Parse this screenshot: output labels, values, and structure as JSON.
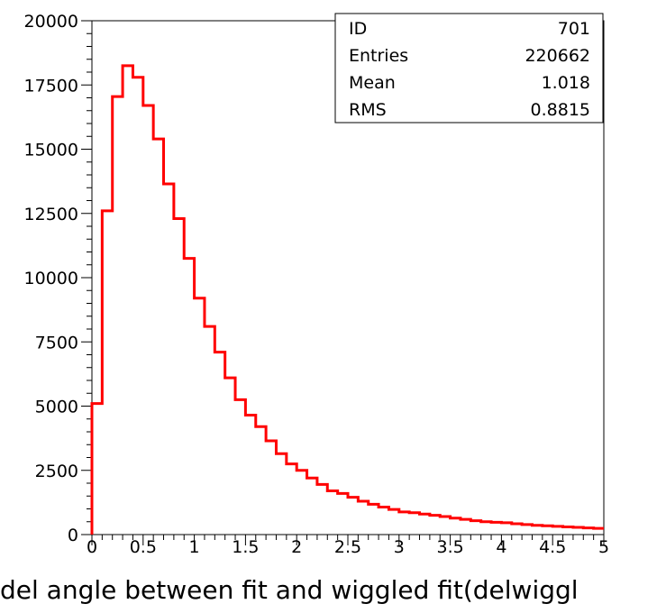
{
  "chart_data": {
    "type": "bar",
    "title": "",
    "xlabel": "del angle between fit and  wiggled fit(delwiggl",
    "ylabel": "",
    "xlim": [
      0,
      5
    ],
    "ylim": [
      0,
      20000
    ],
    "grid": false,
    "x_ticks": [
      "0",
      "0.5",
      "1",
      "1.5",
      "2",
      "2.5",
      "3",
      "3.5",
      "4",
      "4.5",
      "5"
    ],
    "y_ticks": [
      "0",
      "2500",
      "5000",
      "7500",
      "10000",
      "12500",
      "15000",
      "17500",
      "20000"
    ],
    "bin_width": 0.1,
    "bins_start": 0,
    "values": [
      5100,
      12600,
      17050,
      18250,
      17800,
      16700,
      15400,
      13650,
      12300,
      10750,
      9200,
      8100,
      7100,
      6100,
      5250,
      4650,
      4200,
      3650,
      3150,
      2750,
      2500,
      2200,
      1950,
      1700,
      1600,
      1450,
      1300,
      1180,
      1070,
      980,
      880,
      850,
      800,
      750,
      700,
      640,
      590,
      540,
      500,
      480,
      460,
      420,
      390,
      360,
      340,
      320,
      300,
      280,
      260,
      240
    ],
    "line_color": "#ff0000",
    "stats_box": {
      "placement": "top-right",
      "rows": [
        {
          "label": "ID",
          "value": "701"
        },
        {
          "label": "Entries",
          "value": "220662"
        },
        {
          "label": "Mean",
          "value": "1.018"
        },
        {
          "label": "RMS",
          "value": "0.8815"
        }
      ]
    }
  }
}
